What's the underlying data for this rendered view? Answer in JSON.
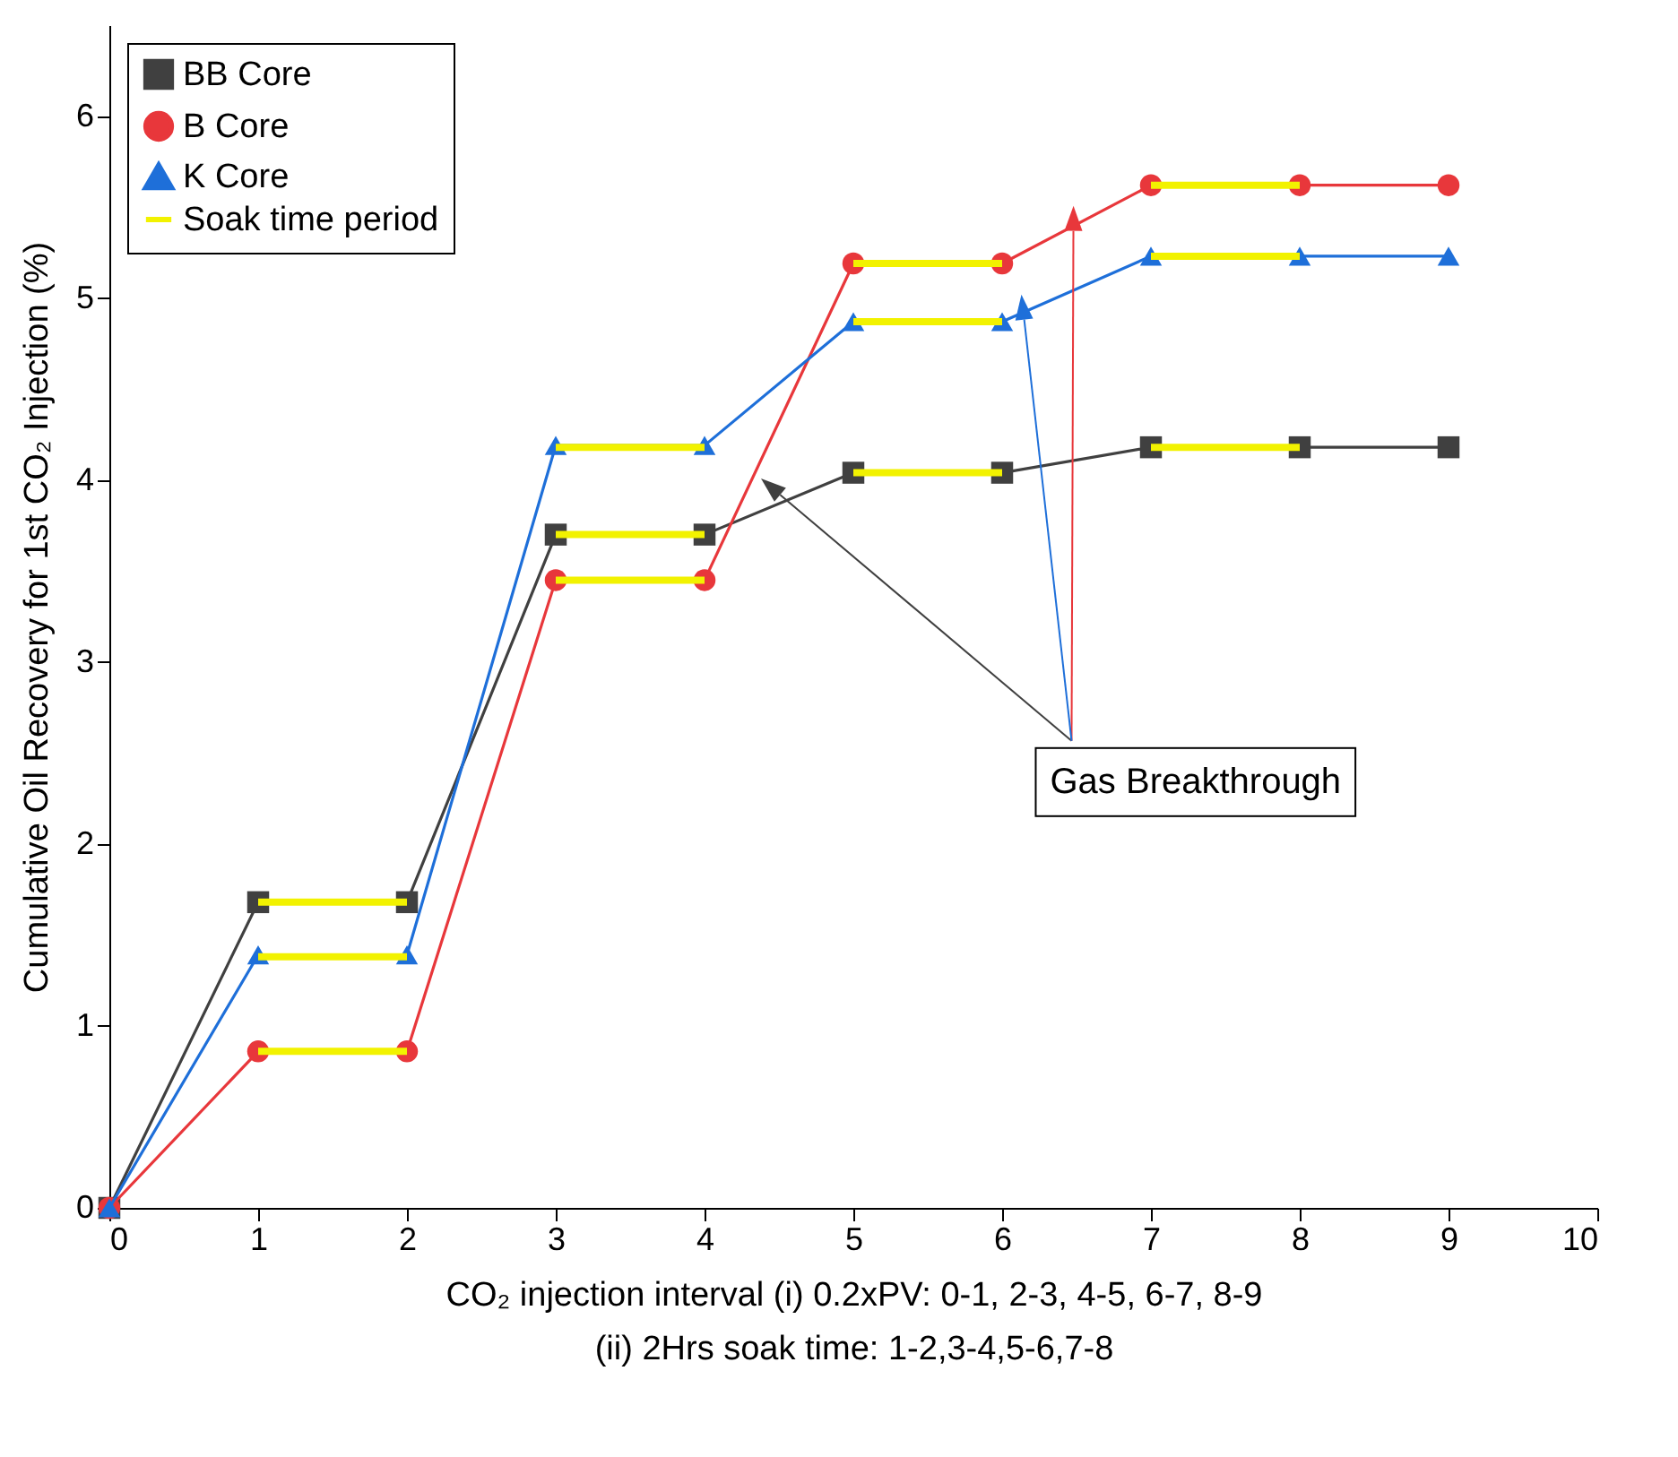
{
  "chart_data": {
    "type": "line",
    "xlabel": "CO₂ injection interval (i) 0.2xPV: 0-1, 2-3, 4-5, 6-7, 8-9\n(ii) 2Hrs soak time: 1-2,3-4,5-6,7-8",
    "ylabel": "Cumulative Oil Recovery for 1st CO₂ Injection (%)",
    "x": [
      0,
      1,
      2,
      3,
      4,
      5,
      6,
      7,
      8,
      9
    ],
    "series": [
      {
        "name": "BB Core",
        "color": "#404040",
        "marker": "square",
        "values": [
          0,
          1.68,
          1.68,
          3.7,
          3.7,
          4.04,
          4.04,
          4.18,
          4.18,
          4.18
        ]
      },
      {
        "name": "B Core",
        "color": "#e8373b",
        "marker": "circle",
        "values": [
          0,
          0.86,
          0.86,
          3.45,
          3.45,
          5.19,
          5.19,
          5.62,
          5.62,
          5.62
        ]
      },
      {
        "name": "K Core",
        "color": "#1e6fd9",
        "marker": "triangle",
        "values": [
          0,
          1.39,
          1.39,
          4.19,
          4.19,
          4.87,
          4.87,
          5.23,
          5.23,
          5.23
        ]
      },
      {
        "name": "Soak time period",
        "color": "#f2f200",
        "marker": "none",
        "x": [
          1,
          2
        ],
        "values": [
          1.68,
          1.68
        ]
      },
      {
        "color": "#f2f200",
        "marker": "none",
        "x": [
          3,
          4
        ],
        "values": [
          3.7,
          3.7
        ]
      },
      {
        "color": "#f2f200",
        "marker": "none",
        "x": [
          5,
          6
        ],
        "values": [
          4.04,
          4.04
        ]
      },
      {
        "color": "#f2f200",
        "marker": "none",
        "x": [
          7,
          8
        ],
        "values": [
          4.18,
          4.18
        ]
      },
      {
        "color": "#f2f200",
        "marker": "none",
        "x": [
          1,
          2
        ],
        "values": [
          0.86,
          0.86
        ]
      },
      {
        "color": "#f2f200",
        "marker": "none",
        "x": [
          3,
          4
        ],
        "values": [
          3.45,
          3.45
        ]
      },
      {
        "color": "#f2f200",
        "marker": "none",
        "x": [
          5,
          6
        ],
        "values": [
          5.19,
          5.19
        ]
      },
      {
        "color": "#f2f200",
        "marker": "none",
        "x": [
          7,
          8
        ],
        "values": [
          5.62,
          5.62
        ]
      },
      {
        "color": "#f2f200",
        "marker": "none",
        "x": [
          1,
          2
        ],
        "values": [
          1.38,
          1.38
        ]
      },
      {
        "color": "#f2f200",
        "marker": "none",
        "x": [
          3,
          4
        ],
        "values": [
          4.18,
          4.18
        ]
      },
      {
        "color": "#f2f200",
        "marker": "none",
        "x": [
          5,
          6
        ],
        "values": [
          4.87,
          4.87
        ]
      },
      {
        "color": "#f2f200",
        "marker": "none",
        "x": [
          7,
          8
        ],
        "values": [
          5.23,
          5.23
        ]
      }
    ],
    "annotations": [
      {
        "text": "Gas Breakthrough",
        "x": 4.5,
        "y": 3.87
      }
    ],
    "xlim": [
      0,
      10
    ],
    "xticks": [
      0,
      1,
      2,
      3,
      4,
      5,
      6,
      7,
      8,
      9,
      10
    ],
    "ylim": [
      0,
      6.5
    ],
    "yticks": [
      0,
      1,
      2,
      3,
      4,
      5,
      6
    ],
    "grid": false,
    "legend": "top left"
  }
}
